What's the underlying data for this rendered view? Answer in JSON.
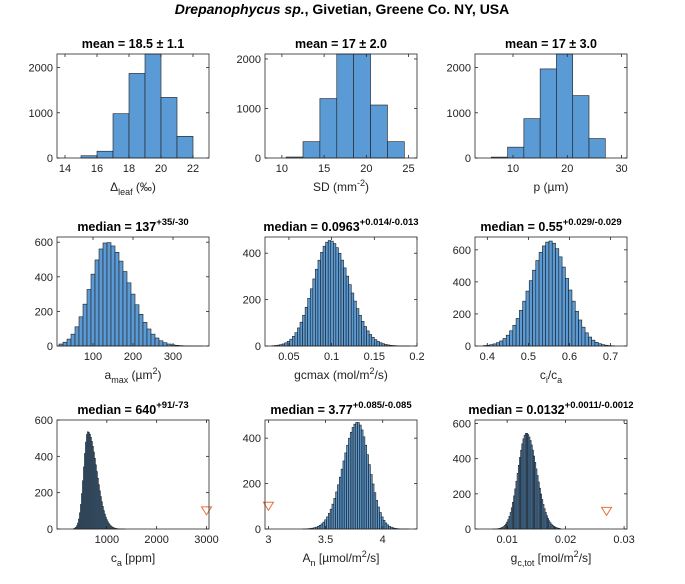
{
  "figure": {
    "title_species": "Drepanophycus sp.",
    "title_rest": ", Givetian, Greene Co. NY, USA"
  },
  "chart_data": [
    {
      "type": "bar",
      "panel": "delta-leaf",
      "title": "mean = 18.5 ± 1.1",
      "xlabel": {
        "main": "Δ",
        "sub": "leaf",
        "rest": " (‰)"
      },
      "xlim": [
        13.5,
        23
      ],
      "ylim": [
        0,
        2300
      ],
      "xticks": [
        14,
        16,
        18,
        20,
        22
      ],
      "yticks": [
        0,
        1000,
        2000
      ],
      "bin_edges": [
        15,
        16,
        17,
        18,
        19,
        20,
        21,
        22
      ],
      "values": [
        50,
        150,
        980,
        1870,
        2300,
        1340,
        480,
        100
      ]
    },
    {
      "type": "bar",
      "panel": "stomatal-density",
      "title": "mean = 17 ± 2.0",
      "xlabel": {
        "main": "SD (mm",
        "sup": "-2",
        "rest": ")"
      },
      "xlim": [
        8,
        26
      ],
      "ylim": [
        0,
        2100
      ],
      "xticks": [
        10,
        15,
        20,
        25
      ],
      "yticks": [
        0,
        1000,
        2000
      ],
      "bin_edges": [
        10.5,
        12.5,
        14.5,
        16.5,
        18.5,
        20.5,
        22.5,
        24.5
      ],
      "values": [
        20,
        330,
        1200,
        2100,
        2100,
        1070,
        330,
        60
      ]
    },
    {
      "type": "bar",
      "panel": "pore-length",
      "title": "mean = 17 ± 3.0",
      "xlabel": {
        "main": "p (µm)"
      },
      "xlim": [
        3,
        31
      ],
      "ylim": [
        0,
        2300
      ],
      "xticks": [
        10,
        20,
        30
      ],
      "yticks": [
        0,
        1000,
        2000
      ],
      "bin_edges": [
        6,
        9,
        12,
        15,
        18,
        21,
        24,
        27
      ],
      "values": [
        20,
        240,
        870,
        1970,
        2300,
        1380,
        430,
        60
      ]
    },
    {
      "type": "bar",
      "panel": "amax",
      "title": "median = 137",
      "title_sup": "+35/-30",
      "xlabel": {
        "main": "a",
        "sub": "max",
        "rest": " (µm",
        "sup": "2",
        "rest2": ")"
      },
      "xlim": [
        10,
        390
      ],
      "ylim": [
        0,
        630
      ],
      "xticks": [
        100,
        200,
        300
      ],
      "yticks": [
        0,
        200,
        400,
        600
      ],
      "gaussian": {
        "center": 135,
        "sigma": 48,
        "peak": 600,
        "skew": 0.3,
        "from": 15,
        "to": 370,
        "width": 10
      }
    },
    {
      "type": "bar",
      "panel": "gcmax",
      "title": "median = 0.0963",
      "title_sup": "+0.014/-0.013",
      "xlabel": {
        "main": "gcmax (mol/m",
        "sup": "2",
        "rest": "/s)"
      },
      "xlim": [
        0.022,
        0.2
      ],
      "ylim": [
        0,
        470
      ],
      "xticks": [
        0.05,
        0.1,
        0.15,
        0.2
      ],
      "yticks": [
        0,
        200,
        400
      ],
      "gaussian": {
        "center": 0.098,
        "sigma": 0.021,
        "peak": 455,
        "skew": 0.15,
        "from": 0.03,
        "to": 0.19,
        "width": 0.003
      }
    },
    {
      "type": "bar",
      "panel": "ci-ca",
      "title": "median = 0.55",
      "title_sup": "+0.029/-0.029",
      "xlabel": {
        "main": "c",
        "sub": "i",
        "rest": "/c",
        "sub2": "a"
      },
      "xlim": [
        0.37,
        0.74
      ],
      "ylim": [
        0,
        680
      ],
      "xticks": [
        0.4,
        0.5,
        0.6,
        0.7
      ],
      "yticks": [
        0,
        200,
        400,
        600
      ],
      "gaussian": {
        "center": 0.553,
        "sigma": 0.046,
        "peak": 655,
        "skew": -0.1,
        "from": 0.39,
        "to": 0.71,
        "width": 0.008
      }
    },
    {
      "type": "bar",
      "panel": "ca",
      "title": "median = 640",
      "title_sup": "+91/-73",
      "xlabel": {
        "main": "c",
        "sub": "a",
        "rest": " [ppm]"
      },
      "xlim": [
        0,
        3050
      ],
      "ylim": [
        0,
        600
      ],
      "xticks": [
        1000,
        2000,
        3000
      ],
      "yticks": [
        0,
        200,
        400,
        600
      ],
      "gaussian": {
        "center": 620,
        "sigma": 130,
        "peak": 535,
        "skew": 0.7,
        "from": 330,
        "to": 1400,
        "width": 20
      },
      "marker": {
        "x": 3000,
        "y": 100
      }
    },
    {
      "type": "bar",
      "panel": "An",
      "title": "median = 3.77",
      "title_sup": "+0.085/-0.085",
      "xlabel": {
        "main": "A",
        "sub": "n",
        "rest": " [µmol/m",
        "sup": "2",
        "rest2": "/s]"
      },
      "xlim": [
        2.97,
        4.3
      ],
      "ylim": [
        0,
        480
      ],
      "xticks": [
        3,
        3.5,
        4
      ],
      "yticks": [
        0,
        200,
        400
      ],
      "gaussian": {
        "center": 3.78,
        "sigma": 0.115,
        "peak": 470,
        "skew": -0.2,
        "from": 3.3,
        "to": 4.22,
        "width": 0.016
      },
      "marker": {
        "x": 3.0,
        "y": 100
      }
    },
    {
      "type": "bar",
      "panel": "gc-tot",
      "title": "median = 0.0132",
      "title_sup": "+0.0011/-0.0012",
      "xlabel": {
        "main": "g",
        "sub": "c,tot",
        "rest": " [mol/m",
        "sup": "2",
        "rest2": "/s]"
      },
      "xlim": [
        0.0045,
        0.0305
      ],
      "ylim": [
        0,
        620
      ],
      "xticks": [
        0.01,
        0.02,
        0.03
      ],
      "yticks": [
        0,
        200,
        400,
        600
      ],
      "gaussian": {
        "center": 0.0133,
        "sigma": 0.0016,
        "peak": 545,
        "skew": 0.2,
        "from": 0.0075,
        "to": 0.019,
        "width": 0.0002
      },
      "marker": {
        "x": 0.027,
        "y": 100
      }
    }
  ]
}
